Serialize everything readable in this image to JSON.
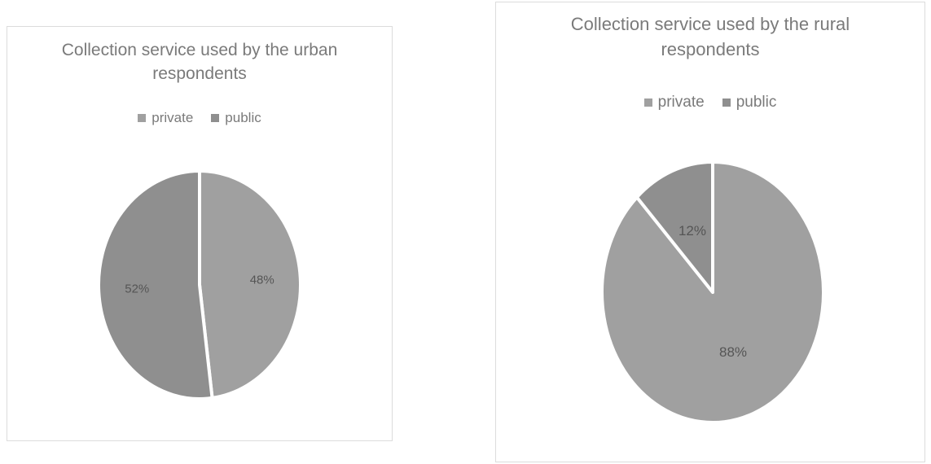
{
  "chart_data": [
    {
      "type": "pie",
      "title": "Collection service used by the urban respondents",
      "title_lines": [
        "Collection service used by the urban",
        "respondents"
      ],
      "legend": [
        "private",
        "public"
      ],
      "legend_position": "top",
      "slices": [
        {
          "label": "private",
          "value": 48,
          "data_label": "48%",
          "color": "#a0a0a0"
        },
        {
          "label": "public",
          "value": 52,
          "data_label": "52%",
          "color": "#8f8f8f"
        }
      ]
    },
    {
      "type": "pie",
      "title": "Collection service used by the rural respondents",
      "title_lines": [
        "Collection service used by the rural",
        "respondents"
      ],
      "legend": [
        "private",
        "public"
      ],
      "legend_position": "top",
      "slices": [
        {
          "label": "private",
          "value": 88,
          "data_label": "88%",
          "color": "#a0a0a0"
        },
        {
          "label": "public",
          "value": 12,
          "data_label": "12%",
          "color": "#8f8f8f"
        }
      ]
    }
  ]
}
